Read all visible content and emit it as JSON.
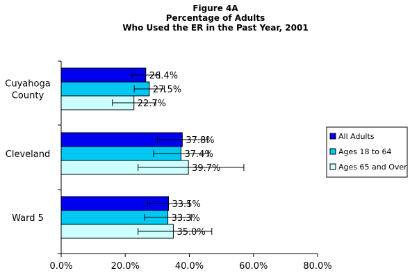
{
  "chart_data": {
    "type": "bar",
    "orientation": "horizontal",
    "title_lines": [
      "Figure 4A",
      "Percentage of Adults",
      "Who Used the ER in the Past Year, 2001"
    ],
    "categories": [
      {
        "lines": [
          "Cuyahoga",
          "County"
        ]
      },
      {
        "lines": [
          "Cleveland"
        ]
      },
      {
        "lines": [
          "Ward 5"
        ]
      }
    ],
    "series": [
      {
        "name": "All Adults",
        "color": "#0000ee",
        "values": [
          26.4,
          37.8,
          33.5
        ],
        "labels": [
          "26.4%",
          "37.8%",
          "33.5%"
        ],
        "err_low": [
          22.1,
          30.0,
          27.0
        ],
        "err_high": [
          30.7,
          45.6,
          40.0
        ]
      },
      {
        "name": "Ages 18 to 64",
        "color": "#00c8f0",
        "values": [
          27.5,
          37.4,
          33.3
        ],
        "labels": [
          "27.5%",
          "37.4%",
          "33.3%"
        ],
        "err_low": [
          22.8,
          28.8,
          26.0
        ],
        "err_high": [
          32.2,
          46.0,
          40.6
        ]
      },
      {
        "name": "Ages 65 and Over",
        "color": "#ccffff",
        "values": [
          22.7,
          39.7,
          35.0
        ],
        "labels": [
          "22.7%",
          "39.7%",
          "35.0%"
        ],
        "err_low": [
          16.0,
          24.0,
          24.0
        ],
        "err_high": [
          29.5,
          57.0,
          47.0
        ]
      }
    ],
    "x_ticks": [
      "0.0%",
      "20.0%",
      "40.0%",
      "60.0%",
      "80.0%"
    ],
    "xlim": [
      0,
      80
    ],
    "grid": false,
    "legend_position": "right"
  }
}
